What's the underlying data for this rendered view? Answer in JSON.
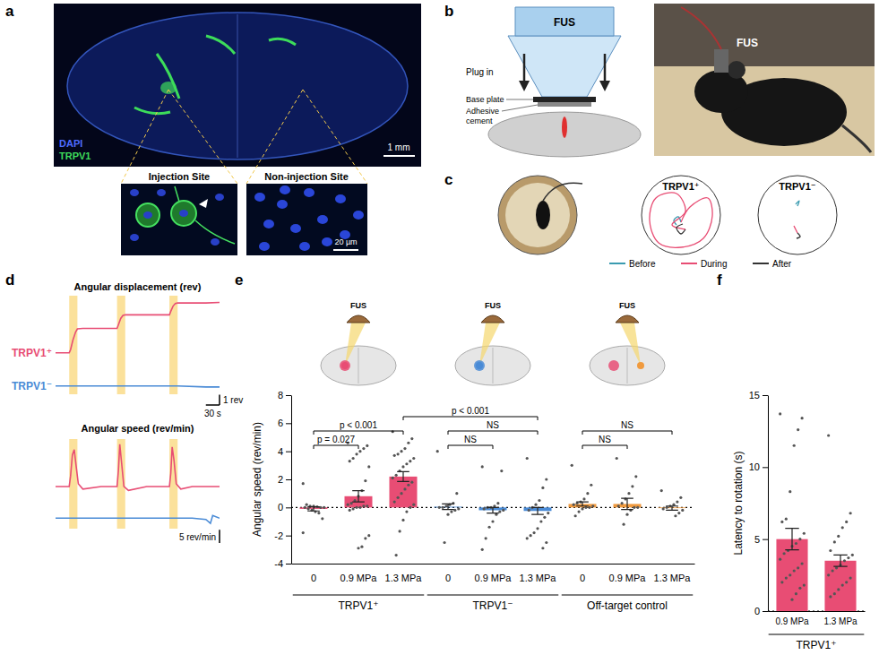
{
  "figure": {
    "panel_a": {
      "panel_label": "a",
      "stains": [
        {
          "name": "DAPI",
          "color": "#4d6bff"
        },
        {
          "name": "TRPV1",
          "color": "#3ddc5a"
        }
      ],
      "scale_bar": "1 mm",
      "insets": [
        "Injection Site",
        "Non-injection Site"
      ],
      "inset_scale_bar": "20 µm"
    },
    "panel_b": {
      "panel_label": "b",
      "device": "FUS",
      "arrow_label": "Plug in",
      "parts": [
        "Base plate",
        "Adhesive cement"
      ],
      "photo_label": "FUS"
    },
    "panel_c": {
      "panel_label": "c",
      "tracks": [
        "TRPV1⁺",
        "TRPV1⁻"
      ],
      "phases": [
        {
          "name": "Before",
          "color": "#3a9bb0"
        },
        {
          "name": "During",
          "color": "#e84d74"
        },
        {
          "name": "After",
          "color": "#333333"
        }
      ]
    }
  },
  "chart_data": [
    {
      "type": "line",
      "panel_label": "d",
      "title": "Angular displacement (rev)",
      "x": [
        0,
        20,
        30,
        33,
        38,
        44,
        48,
        60,
        100,
        135,
        138,
        143,
        148,
        153,
        200,
        250,
        253,
        258,
        263,
        268,
        330,
        360
      ],
      "series": [
        {
          "name": "TRPV1⁺",
          "color": "#e84d74",
          "values": [
            0,
            0,
            0,
            0.3,
            1.2,
            2.0,
            2.3,
            2.35,
            2.35,
            2.35,
            2.7,
            3.3,
            3.6,
            3.65,
            3.65,
            3.65,
            4.0,
            4.5,
            4.75,
            4.8,
            4.8,
            4.85
          ]
        },
        {
          "name": "TRPV1⁻",
          "color": "#4a8bd6",
          "values": [
            -3.2,
            -3.2,
            -3.2,
            -3.2,
            -3.2,
            -3.2,
            -3.2,
            -3.2,
            -3.2,
            -3.2,
            -3.2,
            -3.2,
            -3.2,
            -3.2,
            -3.2,
            -3.2,
            -3.2,
            -3.2,
            -3.2,
            -3.2,
            -3.3,
            -3.3
          ]
        }
      ],
      "xlim": [
        0,
        360
      ],
      "ylim": [
        -4,
        5.5
      ],
      "tick_labels": false,
      "stimulation": [
        [
          30,
          48
        ],
        [
          135,
          153
        ],
        [
          250,
          268
        ]
      ],
      "scale_bars": [
        {
          "axis": "y",
          "value": 1,
          "label": "1 rev"
        },
        {
          "axis": "x",
          "value": 30,
          "label": "30 s"
        }
      ]
    },
    {
      "type": "line",
      "title": "Angular speed (rev/min)",
      "x": [
        0,
        25,
        30,
        33,
        37,
        41,
        45,
        50,
        60,
        100,
        130,
        135,
        138,
        141,
        145,
        150,
        160,
        200,
        245,
        250,
        253,
        256,
        260,
        265,
        275,
        300,
        330,
        340,
        345,
        360
      ],
      "series": [
        {
          "color": "#e84d74",
          "values": [
            0,
            0,
            0,
            4,
            12,
            14,
            8,
            1,
            -1,
            0,
            0,
            0,
            6,
            16,
            9,
            0,
            -1.5,
            0,
            0,
            0,
            5,
            15,
            10,
            1,
            -1,
            0,
            0,
            0,
            0,
            0
          ]
        },
        {
          "color": "#4a8bd6",
          "values": [
            -12,
            -12,
            -12,
            -12,
            -12,
            -12,
            -12,
            -12,
            -12,
            -12,
            -12,
            -12,
            -12,
            -12,
            -12,
            -12,
            -12,
            -12,
            -12,
            -12,
            -12,
            -12,
            -12,
            -12,
            -12,
            -12,
            -12.5,
            -14,
            -11,
            -12
          ]
        }
      ],
      "xlim": [
        0,
        360
      ],
      "ylim": [
        -16,
        18
      ],
      "tick_labels": false,
      "stimulation": [
        [
          30,
          48
        ],
        [
          135,
          153
        ],
        [
          250,
          268
        ]
      ],
      "scale_bars": [
        {
          "axis": "y",
          "value": 5,
          "label": "5 rev/min"
        }
      ]
    },
    {
      "type": "bar",
      "panel_label": "e",
      "y_label": "Angular speed (rev/min)",
      "categories": [
        "0",
        "0.9 MPa",
        "1.3 MPa",
        "0",
        "0.9 MPa",
        "1.3 MPa",
        "0",
        "0.9 MPa",
        "1.3 MPa"
      ],
      "values": [
        -0.1,
        0.8,
        2.2,
        0.05,
        -0.2,
        -0.25,
        0.25,
        0.25,
        -0.05
      ],
      "errors": [
        0.15,
        0.4,
        0.35,
        0.2,
        0.2,
        0.25,
        0.15,
        0.4,
        0.15
      ],
      "colors": [
        "#e84d74",
        "#e84d74",
        "#e84d74",
        "#4a8bd6",
        "#4a8bd6",
        "#4a8bd6",
        "#f09a3e",
        "#f09a3e",
        "#f09a3e"
      ],
      "points": [
        [
          -1.8,
          -0.8,
          -0.4,
          -0.3,
          -0.2,
          -0.1,
          0,
          0,
          0,
          0.05,
          0.1,
          0.1,
          0.2,
          1.7
        ],
        [
          4.6,
          4.4,
          4.2,
          4.0,
          3.8,
          3.5,
          3.3,
          2.9,
          1.9,
          1.2,
          0.8,
          0.5,
          0.3,
          0.2,
          0.1,
          0.1,
          0,
          0,
          -0.1,
          -0.2,
          -2.0,
          -2.2,
          -2.8,
          -2.9
        ],
        [
          5.4,
          4.9,
          4.6,
          4.2,
          4.0,
          3.8,
          3.7,
          3.5,
          3.3,
          3.1,
          2.9,
          2.6,
          2.3,
          2.1,
          1.8,
          1.6,
          1.3,
          1.0,
          0.7,
          0.4,
          0.2,
          0,
          -0.3,
          -0.9,
          -1.7,
          -3.4
        ],
        [
          4.0,
          1.0,
          0.3,
          0.2,
          0.1,
          0,
          0,
          -0.1,
          -0.2,
          -0.3,
          -0.5,
          -2.5
        ],
        [
          2.9,
          2.6,
          0.3,
          0.1,
          0,
          0,
          -0.1,
          -0.2,
          -0.3,
          -0.5,
          -1.0,
          -1.4,
          -2.2,
          -3.0
        ],
        [
          3.5,
          2.0,
          1.4,
          0.5,
          0.2,
          0,
          -0.2,
          -0.4,
          -0.7,
          -1.0,
          -1.5,
          -1.8,
          -2.0,
          -2.2,
          -2.5,
          -2.9
        ],
        [
          3.0,
          1.6,
          1.0,
          0.6,
          0.4,
          0.3,
          0.2,
          0.1,
          0,
          0,
          -0.1,
          -0.3,
          -0.6
        ],
        [
          3.5,
          2.2,
          1.5,
          1.0,
          0.6,
          0.3,
          0.1,
          0,
          0,
          -0.2,
          -0.5,
          -1.2
        ],
        [
          1.2,
          0.7,
          0.4,
          0.2,
          0.1,
          0,
          -0.1,
          -0.2,
          -0.4,
          -0.6
        ]
      ],
      "groups": [
        {
          "name": "TRPV1⁺",
          "from": 0,
          "to": 2
        },
        {
          "name": "TRPV1⁻",
          "from": 3,
          "to": 5
        },
        {
          "name": "Off-target control",
          "from": 6,
          "to": 8
        }
      ],
      "cartoons": [
        {
          "label": "FUS",
          "colors": [
            "#e84d74",
            "#e84d74"
          ]
        },
        {
          "label": "FUS",
          "colors": [
            "#4a8bd6",
            "#4a8bd6"
          ]
        },
        {
          "label": "FUS",
          "colors": [
            "#e84d74",
            "#f09a3e"
          ]
        }
      ],
      "annotations": [
        {
          "from": 0,
          "to": 1,
          "label": "p = 0.027"
        },
        {
          "from": 0,
          "to": 2,
          "label": "p < 0.001"
        },
        {
          "from": 3,
          "to": 4,
          "label": "NS"
        },
        {
          "from": 3,
          "to": 5,
          "label": "NS"
        },
        {
          "from": 6,
          "to": 7,
          "label": "NS"
        },
        {
          "from": 6,
          "to": 8,
          "label": "NS"
        },
        {
          "from": 2,
          "to": 5,
          "label": "p < 0.001"
        }
      ],
      "ylim": [
        -4,
        8
      ],
      "yticks": [
        -4,
        -2,
        0,
        2,
        4,
        6,
        8
      ],
      "grid": false
    },
    {
      "type": "bar",
      "panel_label": "f",
      "y_label": "Latency to rotation (s)",
      "categories": [
        "0.9 MPa",
        "1.3 MPa"
      ],
      "values": [
        5.0,
        3.5
      ],
      "errors": [
        0.75,
        0.4
      ],
      "color": "#e84d74",
      "points": [
        [
          13.7,
          13.4,
          12.6,
          11.5,
          8.3,
          6.4,
          6.2,
          5.4,
          5.0,
          4.7,
          4.5,
          4.2,
          4.0,
          3.6,
          3.3,
          3.0,
          2.8,
          2.5,
          2.3,
          2.0,
          1.8,
          1.6,
          1.2,
          0.8
        ],
        [
          12.2,
          6.8,
          6.2,
          5.8,
          5.2,
          4.8,
          4.2,
          3.9,
          3.7,
          3.5,
          3.2,
          3.0,
          2.8,
          2.5,
          2.3,
          2.0,
          1.8,
          1.5,
          1.2,
          1.0
        ]
      ],
      "groups": [
        {
          "name": "TRPV1⁺",
          "from": 0,
          "to": 1
        }
      ],
      "ylim": [
        0,
        15
      ],
      "yticks": [
        0,
        5,
        10,
        15
      ],
      "grid": false
    }
  ]
}
